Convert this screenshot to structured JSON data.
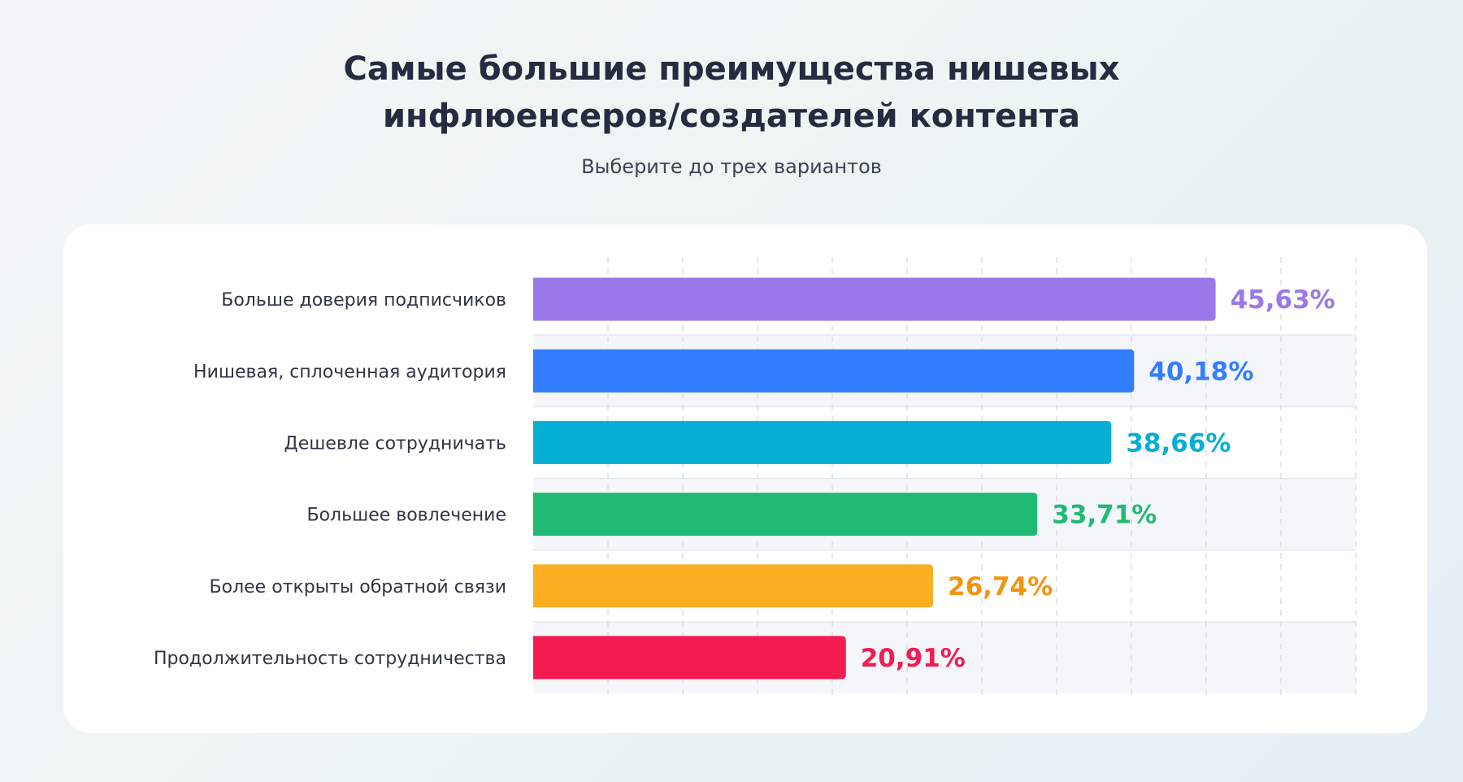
{
  "header": {
    "title": "Самые большие преимущества нишевых\nинфлюенсеров/создателей контента",
    "subtitle": "Выберите до трех вариантов"
  },
  "chart_data": {
    "type": "bar",
    "orientation": "horizontal",
    "title": "Самые большие преимущества нишевых инфлюенсеров/создателей контента",
    "subtitle": "Выберите до трех вариантов",
    "categories": [
      "Больше доверия подписчиков",
      "Нишевая, сплоченная аудитория",
      "Дешевле сотрудничать",
      "Большее вовлечение",
      "Более открыты обратной связи",
      "Продолжительность сотрудничества"
    ],
    "values": [
      45.63,
      40.18,
      38.66,
      33.71,
      26.74,
      20.91
    ],
    "value_labels": [
      "45,63%",
      "40,18%",
      "38,66%",
      "33,71%",
      "26,74%",
      "20,91%"
    ],
    "colors": [
      "#9b78ea",
      "#337dff",
      "#07afd4",
      "#21ba74",
      "#fbaf23",
      "#f31b50"
    ],
    "label_colors": [
      "#9b78ea",
      "#337dff",
      "#07afd4",
      "#21ba74",
      "#f39410",
      "#f31b50"
    ],
    "xlim": [
      0,
      55
    ],
    "grid": true,
    "striped_rows": true
  }
}
